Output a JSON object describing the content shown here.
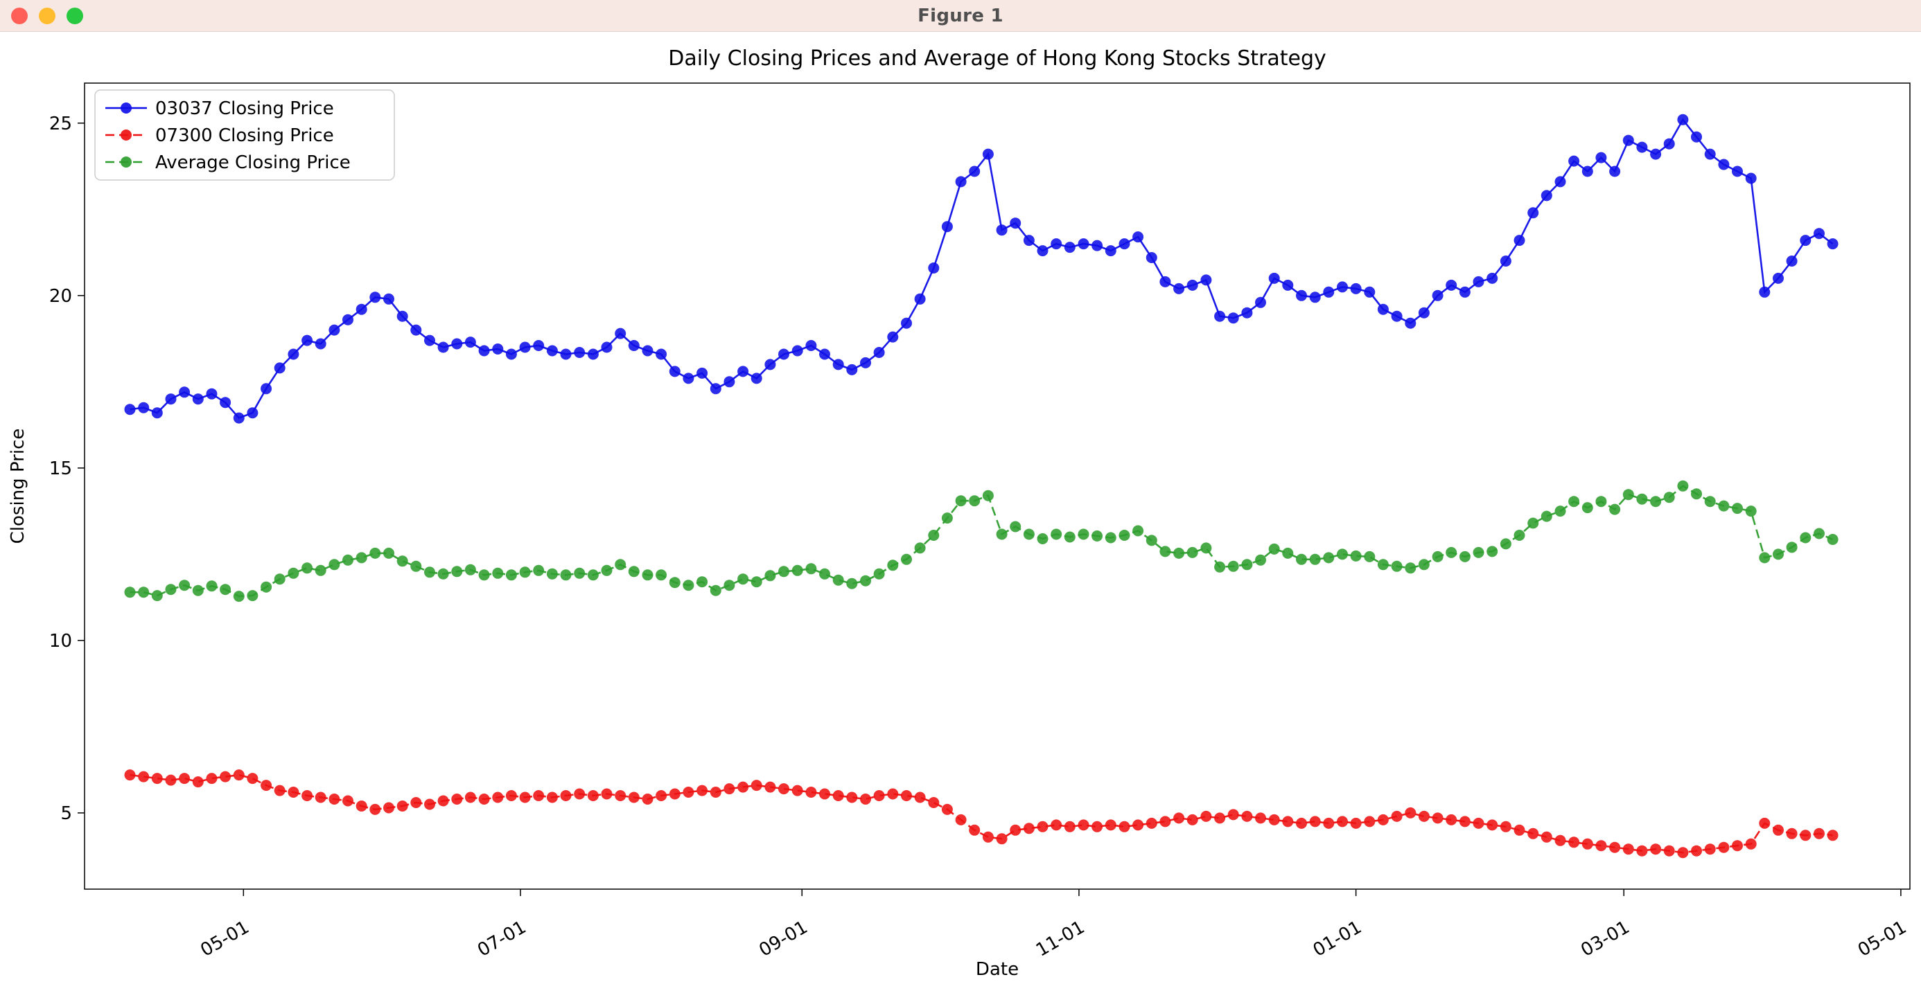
{
  "window": {
    "title": "Figure 1",
    "controls": {
      "close_color": "#ff5f57",
      "minimize_color": "#febc2e",
      "zoom_color": "#28c840"
    }
  },
  "chart_data": {
    "type": "line",
    "title": "Daily Closing Prices and Average of Hong Kong Stocks Strategy",
    "xlabel": "Date",
    "ylabel": "Closing Price",
    "grid": false,
    "legend_position": "upper left",
    "y_ticks": [
      5,
      10,
      15,
      20,
      25
    ],
    "ylim": [
      2.79,
      26.16
    ],
    "xlim_days": [
      -10,
      392
    ],
    "x_step_days": 3,
    "x_ticks": [
      {
        "label": "05-01",
        "day": 25
      },
      {
        "label": "07-01",
        "day": 86
      },
      {
        "label": "09-01",
        "day": 148
      },
      {
        "label": "11-01",
        "day": 209
      },
      {
        "label": "01-01",
        "day": 270
      },
      {
        "label": "03-01",
        "day": 329
      },
      {
        "label": "05-01",
        "day": 390
      }
    ],
    "series": [
      {
        "name": "03037 Closing Price",
        "color": "#0f0fe8",
        "linestyle": "solid",
        "marker": "o",
        "values": [
          16.7,
          16.75,
          16.6,
          17.0,
          17.2,
          17.0,
          17.15,
          16.9,
          16.45,
          16.6,
          17.3,
          17.9,
          18.3,
          18.7,
          18.6,
          19.0,
          19.3,
          19.6,
          19.95,
          19.9,
          19.4,
          19.0,
          18.7,
          18.5,
          18.6,
          18.65,
          18.4,
          18.45,
          18.3,
          18.5,
          18.55,
          18.4,
          18.3,
          18.35,
          18.3,
          18.5,
          18.9,
          18.55,
          18.4,
          18.3,
          17.8,
          17.6,
          17.75,
          17.3,
          17.5,
          17.8,
          17.6,
          18.0,
          18.3,
          18.4,
          18.55,
          18.3,
          18.0,
          17.85,
          18.05,
          18.35,
          18.8,
          19.2,
          19.9,
          20.8,
          22.0,
          23.3,
          23.6,
          24.1,
          21.9,
          22.1,
          21.6,
          21.3,
          21.5,
          21.4,
          21.5,
          21.45,
          21.3,
          21.5,
          21.7,
          21.1,
          20.4,
          20.2,
          20.3,
          20.45,
          19.4,
          19.35,
          19.5,
          19.8,
          20.5,
          20.3,
          20.0,
          19.95,
          20.1,
          20.25,
          20.2,
          20.1,
          19.6,
          19.4,
          19.2,
          19.5,
          20.0,
          20.3,
          20.1,
          20.4,
          20.5,
          21.0,
          21.6,
          22.4,
          22.9,
          23.3,
          23.9,
          23.6,
          24.0,
          23.6,
          24.5,
          24.3,
          24.1,
          24.4,
          25.1,
          24.6,
          24.1,
          23.8,
          23.6,
          23.4,
          20.1,
          20.5,
          21.0,
          21.6,
          21.8,
          21.5
        ]
      },
      {
        "name": "07300 Closing Price",
        "color": "#ee1111",
        "linestyle": "dashed",
        "marker": "o",
        "values": [
          6.1,
          6.05,
          6.0,
          5.95,
          6.0,
          5.9,
          6.0,
          6.05,
          6.1,
          6.0,
          5.8,
          5.65,
          5.6,
          5.5,
          5.45,
          5.4,
          5.35,
          5.2,
          5.1,
          5.15,
          5.2,
          5.3,
          5.25,
          5.35,
          5.4,
          5.45,
          5.4,
          5.45,
          5.5,
          5.45,
          5.5,
          5.45,
          5.5,
          5.55,
          5.5,
          5.55,
          5.5,
          5.45,
          5.4,
          5.5,
          5.55,
          5.6,
          5.65,
          5.6,
          5.7,
          5.75,
          5.8,
          5.75,
          5.7,
          5.65,
          5.6,
          5.55,
          5.5,
          5.45,
          5.4,
          5.5,
          5.55,
          5.5,
          5.45,
          5.3,
          5.1,
          4.8,
          4.5,
          4.3,
          4.25,
          4.5,
          4.55,
          4.6,
          4.65,
          4.6,
          4.65,
          4.6,
          4.65,
          4.6,
          4.65,
          4.7,
          4.75,
          4.85,
          4.8,
          4.9,
          4.85,
          4.95,
          4.9,
          4.85,
          4.8,
          4.75,
          4.7,
          4.75,
          4.7,
          4.75,
          4.7,
          4.75,
          4.8,
          4.9,
          5.0,
          4.9,
          4.85,
          4.8,
          4.75,
          4.7,
          4.65,
          4.6,
          4.5,
          4.4,
          4.3,
          4.2,
          4.15,
          4.1,
          4.05,
          4.0,
          3.95,
          3.9,
          3.95,
          3.9,
          3.85,
          3.9,
          3.95,
          4.0,
          4.05,
          4.1,
          4.7,
          4.5,
          4.4,
          4.35,
          4.4,
          4.35
        ]
      },
      {
        "name": "Average Closing Price",
        "color": "#2e9e2e",
        "linestyle": "dashed",
        "marker": "o",
        "values": [
          11.4,
          11.4,
          11.3,
          11.48,
          11.6,
          11.45,
          11.58,
          11.48,
          11.28,
          11.3,
          11.55,
          11.78,
          11.95,
          12.1,
          12.03,
          12.2,
          12.33,
          12.4,
          12.53,
          12.53,
          12.3,
          12.15,
          11.98,
          11.93,
          12.0,
          12.05,
          11.9,
          11.95,
          11.9,
          11.98,
          12.03,
          11.93,
          11.9,
          11.95,
          11.9,
          12.03,
          12.2,
          12.0,
          11.9,
          11.9,
          11.68,
          11.6,
          11.7,
          11.45,
          11.6,
          11.78,
          11.7,
          11.88,
          12.0,
          12.03,
          12.08,
          11.93,
          11.75,
          11.65,
          11.73,
          11.93,
          12.18,
          12.35,
          12.68,
          13.05,
          13.55,
          14.05,
          14.05,
          14.2,
          13.08,
          13.3,
          13.08,
          12.95,
          13.08,
          13.0,
          13.08,
          13.03,
          12.98,
          13.05,
          13.18,
          12.9,
          12.58,
          12.53,
          12.55,
          12.68,
          12.13,
          12.15,
          12.2,
          12.33,
          12.65,
          12.53,
          12.35,
          12.35,
          12.4,
          12.5,
          12.45,
          12.43,
          12.2,
          12.15,
          12.1,
          12.2,
          12.43,
          12.55,
          12.43,
          12.55,
          12.58,
          12.8,
          13.05,
          13.4,
          13.6,
          13.75,
          14.03,
          13.85,
          14.03,
          13.8,
          14.23,
          14.1,
          14.03,
          14.15,
          14.48,
          14.25,
          14.03,
          13.9,
          13.83,
          13.75,
          12.4,
          12.5,
          12.7,
          12.98,
          13.1,
          12.93
        ]
      }
    ]
  }
}
